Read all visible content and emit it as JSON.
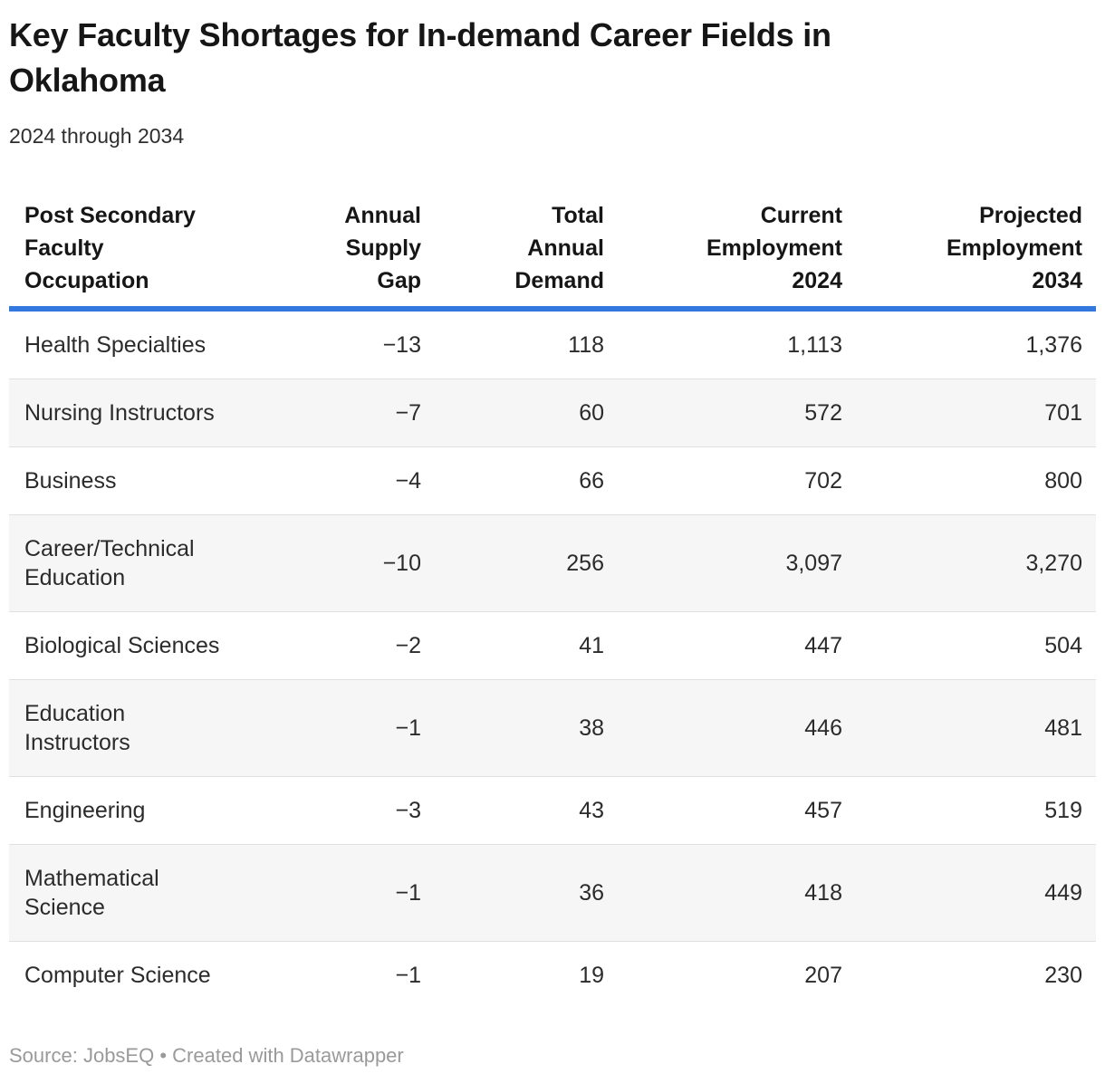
{
  "header": {
    "title": "Key Faculty Shortages for In-demand Career Fields in\nOklahoma",
    "subtitle": "2024 through 2034"
  },
  "table": {
    "columns": [
      {
        "id": "occupation",
        "label": "Post Secondary\nFaculty\nOccupation"
      },
      {
        "id": "annual_supply_gap",
        "label": "Annual\nSupply\nGap"
      },
      {
        "id": "total_annual_demand",
        "label": "Total\nAnnual\nDemand"
      },
      {
        "id": "current_employment_2024",
        "label": "Current\nEmployment\n2024"
      },
      {
        "id": "projected_employment_2034",
        "label": "Projected\nEmployment\n2034"
      }
    ],
    "rows": [
      {
        "occupation": "Health Specialties",
        "annual_supply_gap": "−13",
        "total_annual_demand": "118",
        "current_employment_2024": "1,113",
        "projected_employment_2034": "1,376"
      },
      {
        "occupation": "Nursing Instructors",
        "annual_supply_gap": "−7",
        "total_annual_demand": "60",
        "current_employment_2024": "572",
        "projected_employment_2034": "701"
      },
      {
        "occupation": "Business",
        "annual_supply_gap": "−4",
        "total_annual_demand": "66",
        "current_employment_2024": "702",
        "projected_employment_2034": "800"
      },
      {
        "occupation": "Career/Technical\nEducation",
        "annual_supply_gap": "−10",
        "total_annual_demand": "256",
        "current_employment_2024": "3,097",
        "projected_employment_2034": "3,270"
      },
      {
        "occupation": "Biological Sciences",
        "annual_supply_gap": "−2",
        "total_annual_demand": "41",
        "current_employment_2024": "447",
        "projected_employment_2034": "504"
      },
      {
        "occupation": "Education\nInstructors",
        "annual_supply_gap": "−1",
        "total_annual_demand": "38",
        "current_employment_2024": "446",
        "projected_employment_2034": "481"
      },
      {
        "occupation": "Engineering",
        "annual_supply_gap": "−3",
        "total_annual_demand": "43",
        "current_employment_2024": "457",
        "projected_employment_2034": "519"
      },
      {
        "occupation": "Mathematical\nScience",
        "annual_supply_gap": "−1",
        "total_annual_demand": "36",
        "current_employment_2024": "418",
        "projected_employment_2034": "449"
      },
      {
        "occupation": "Computer Science",
        "annual_supply_gap": "−1",
        "total_annual_demand": "19",
        "current_employment_2024": "207",
        "projected_employment_2034": "230"
      }
    ]
  },
  "footer": {
    "source_prefix": "Source:",
    "source_name": "JobsEQ",
    "bullet": "•",
    "credit": "Created with Datawrapper"
  },
  "colors": {
    "accent_rule": "#3378de",
    "stripe": "#f6f6f6",
    "row_divider": "#e0e0e0",
    "title_text": "#161616",
    "body_text": "#2b2b2b",
    "footer_text": "#9a9a9a"
  },
  "chart_data": {
    "type": "table",
    "title": "Key Faculty Shortages for In-demand Career Fields in Oklahoma",
    "subtitle": "2024 through 2034",
    "columns": [
      "Post Secondary Faculty Occupation",
      "Annual Supply Gap",
      "Total Annual Demand",
      "Current Employment 2024",
      "Projected Employment 2034"
    ],
    "rows": [
      [
        "Health Specialties",
        -13,
        118,
        1113,
        1376
      ],
      [
        "Nursing Instructors",
        -7,
        60,
        572,
        701
      ],
      [
        "Business",
        -4,
        66,
        702,
        800
      ],
      [
        "Career/Technical Education",
        -10,
        256,
        3097,
        3270
      ],
      [
        "Biological Sciences",
        -2,
        41,
        447,
        504
      ],
      [
        "Education Instructors",
        -1,
        38,
        446,
        481
      ],
      [
        "Engineering",
        -3,
        43,
        457,
        519
      ],
      [
        "Mathematical Science",
        -1,
        36,
        418,
        449
      ],
      [
        "Computer Science",
        -1,
        19,
        207,
        230
      ]
    ],
    "source": "JobsEQ",
    "credit": "Created with Datawrapper"
  }
}
